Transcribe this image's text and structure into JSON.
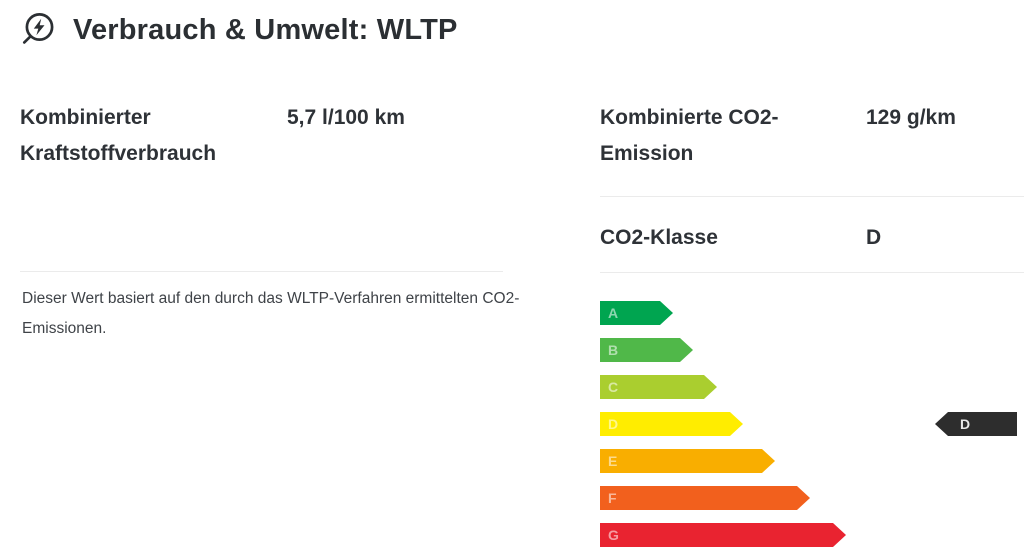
{
  "header": {
    "icon": "eco-energy-icon",
    "title": "Verbrauch & Umwelt: WLTP"
  },
  "consumption": {
    "label": "Kombinierter Kraftstoffverbrauch",
    "value": "5,7 l/100 km"
  },
  "co2_emission": {
    "label": "Kombinierte CO2-Emission",
    "value": "129 g/km"
  },
  "co2_class": {
    "label": "CO2-Klasse",
    "value": "D"
  },
  "disclaimer": "Dieser Wert basiert auf den durch das WLTP-Verfahren ermittelten CO2-Emissionen.",
  "chart_data": {
    "type": "bar",
    "title": "CO2-Klassen-Skala (A–G)",
    "categories": [
      "A",
      "B",
      "C",
      "D",
      "E",
      "F",
      "G"
    ],
    "values": [
      73,
      93,
      117,
      143,
      175,
      210,
      246
    ],
    "value_unit": "arrow length px (efficiency scale, A best → G worst)",
    "colors": [
      "#00a550",
      "#50b849",
      "#aace2f",
      "#ffed00",
      "#f9ae00",
      "#f2601d",
      "#e92330"
    ],
    "selected_class": "D",
    "indicator": {
      "label": "D",
      "color": "#2d2d2d",
      "text_color": "#e8e8e8"
    },
    "legend_position": "none",
    "grid": false
  }
}
